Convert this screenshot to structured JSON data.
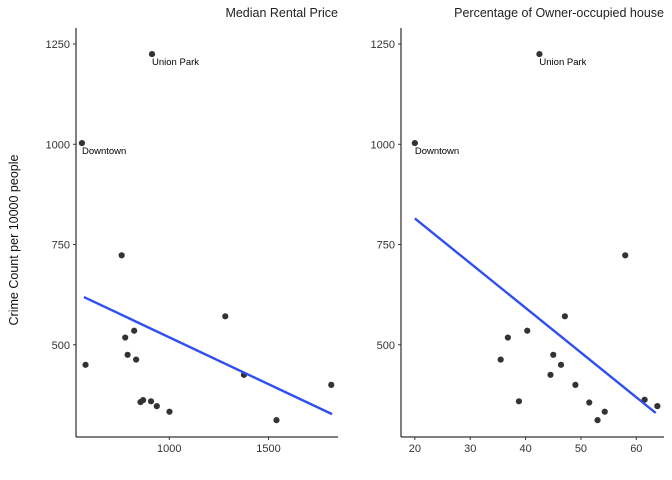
{
  "chart_data": {
    "type": "scatter",
    "ylabel": "Crime Count per 10000 people",
    "ylim": [
      270,
      1290
    ],
    "yticks": [
      500,
      750,
      1000,
      1250
    ],
    "colors": {
      "point": "#333333",
      "trend": "#2f4ff1",
      "axis": "#000000"
    },
    "grid": false,
    "panels": [
      {
        "title": "Median Rental Price",
        "xlabel": "",
        "xlim": [
          530,
          1850
        ],
        "xticks": [
          1000,
          1500
        ],
        "points": [
          {
            "x": 560,
            "y": 1003
          },
          {
            "x": 913,
            "y": 1225
          },
          {
            "x": 760,
            "y": 723
          },
          {
            "x": 1282,
            "y": 571
          },
          {
            "x": 823,
            "y": 535
          },
          {
            "x": 778,
            "y": 518
          },
          {
            "x": 790,
            "y": 475
          },
          {
            "x": 833,
            "y": 463
          },
          {
            "x": 578,
            "y": 450
          },
          {
            "x": 1376,
            "y": 425
          },
          {
            "x": 1816,
            "y": 400
          },
          {
            "x": 868,
            "y": 362
          },
          {
            "x": 855,
            "y": 357
          },
          {
            "x": 908,
            "y": 359
          },
          {
            "x": 937,
            "y": 347
          },
          {
            "x": 1001,
            "y": 333
          },
          {
            "x": 1540,
            "y": 312
          }
        ],
        "trend": {
          "x1": 570,
          "y1": 619,
          "x2": 1820,
          "y2": 327
        },
        "annotations": [
          {
            "text": "Downtown",
            "x": 560,
            "y": 1003
          },
          {
            "text": "Union Park",
            "x": 913,
            "y": 1225
          }
        ]
      },
      {
        "title": "Percentage of Owner-occupied house",
        "xlabel": "",
        "xlim": [
          17.5,
          65
        ],
        "xticks": [
          20,
          30,
          40,
          50,
          60
        ],
        "points": [
          {
            "x": 20,
            "y": 1003
          },
          {
            "x": 42.5,
            "y": 1225
          },
          {
            "x": 58,
            "y": 723
          },
          {
            "x": 47.1,
            "y": 571
          },
          {
            "x": 40.3,
            "y": 535
          },
          {
            "x": 36.8,
            "y": 518
          },
          {
            "x": 45,
            "y": 475
          },
          {
            "x": 35.5,
            "y": 463
          },
          {
            "x": 46.4,
            "y": 450
          },
          {
            "x": 44.5,
            "y": 425
          },
          {
            "x": 49,
            "y": 400
          },
          {
            "x": 61.5,
            "y": 363
          },
          {
            "x": 63.8,
            "y": 347
          },
          {
            "x": 38.8,
            "y": 359
          },
          {
            "x": 51.5,
            "y": 356
          },
          {
            "x": 54.3,
            "y": 333
          },
          {
            "x": 53,
            "y": 312
          }
        ],
        "trend": {
          "x1": 20,
          "y1": 815,
          "x2": 63.5,
          "y2": 330
        },
        "annotations": [
          {
            "text": "Downtown",
            "x": 20,
            "y": 1003
          },
          {
            "text": "Union Park",
            "x": 42.5,
            "y": 1225
          }
        ]
      }
    ]
  }
}
